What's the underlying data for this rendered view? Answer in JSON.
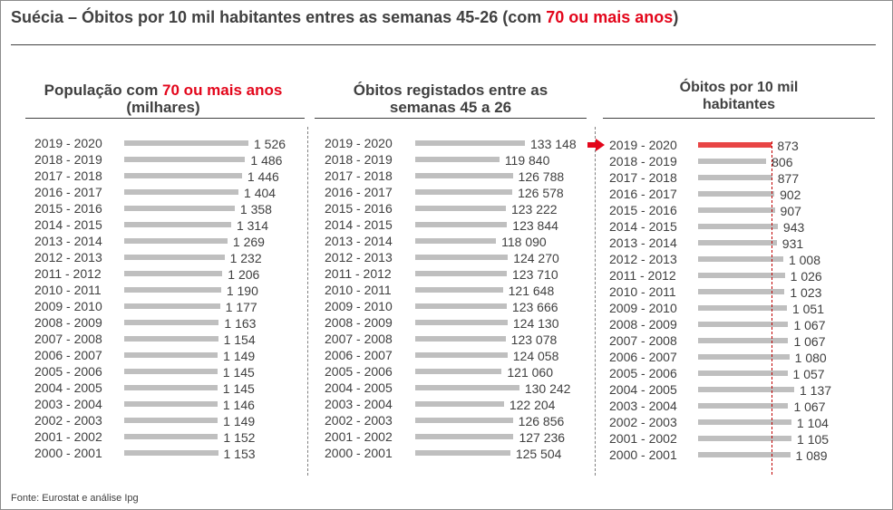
{
  "title": {
    "prefix": "Suécia – Óbitos por 10 mil habitantes entres as semanas 45-26 (com ",
    "highlight": "70 ou mais anos",
    "suffix": ")"
  },
  "source": "Fonte: Eurostat e análise Ipg",
  "colors": {
    "text": "#404040",
    "accent_red": "#e3061b",
    "bar": "#bfbfbf",
    "bar_highlight": "#e84545"
  },
  "panels": [
    {
      "title_pre": "População com ",
      "title_red": "70 ou mais anos",
      "title_post": "(milhares)"
    },
    {
      "title_line1": "Óbitos registados entre as",
      "title_line2": "semanas 45 a 26"
    },
    {
      "title_line1": "Óbitos por 10 mil",
      "title_line2": "habitantes"
    }
  ],
  "chart_data": [
    {
      "type": "bar",
      "orientation": "horizontal",
      "title": "População com 70 ou mais anos (milhares)",
      "categories": [
        "2019 - 2020",
        "2018 - 2019",
        "2017 - 2018",
        "2016 - 2017",
        "2015 - 2016",
        "2014 - 2015",
        "2013 - 2014",
        "2012 - 2013",
        "2011 - 2012",
        "2010 - 2011",
        "2009 - 2010",
        "2008 - 2009",
        "2007 - 2008",
        "2006 - 2007",
        "2005 - 2006",
        "2004 - 2005",
        "2003 - 2004",
        "2002 - 2003",
        "2001 - 2002",
        "2000 - 2001"
      ],
      "values": [
        1526,
        1486,
        1446,
        1404,
        1358,
        1314,
        1269,
        1232,
        1206,
        1190,
        1177,
        1163,
        1154,
        1149,
        1145,
        1145,
        1146,
        1149,
        1152,
        1153
      ],
      "labels": [
        "1 526",
        "1 486",
        "1 446",
        "1 404",
        "1 358",
        "1 314",
        "1 269",
        "1 232",
        "1 206",
        "1 190",
        "1 177",
        "1 163",
        "1 154",
        "1 149",
        "1 145",
        "1 145",
        "1 146",
        "1 149",
        "1 152",
        "1 153"
      ],
      "xlim": [
        0,
        1526
      ]
    },
    {
      "type": "bar",
      "orientation": "horizontal",
      "title": "Óbitos registados entre as semanas 45 a 26",
      "categories": [
        "2019 - 2020",
        "2018 - 2019",
        "2017 - 2018",
        "2016 - 2017",
        "2015 - 2016",
        "2014 - 2015",
        "2013 - 2014",
        "2012 - 2013",
        "2011 - 2012",
        "2010 - 2011",
        "2009 - 2010",
        "2008 - 2009",
        "2007 - 2008",
        "2006 - 2007",
        "2005 - 2006",
        "2004 - 2005",
        "2003 - 2004",
        "2002 - 2003",
        "2001 - 2002",
        "2000 - 2001"
      ],
      "values": [
        133148,
        119840,
        126788,
        126578,
        123222,
        123844,
        118090,
        124270,
        123710,
        121648,
        123666,
        124130,
        123078,
        124058,
        121060,
        130242,
        122204,
        126856,
        127236,
        125504
      ],
      "labels": [
        "133 148",
        "119 840",
        "126 788",
        "126 578",
        "123 222",
        "123 844",
        "118 090",
        "124 270",
        "123 710",
        "121 648",
        "123 666",
        "124 130",
        "123 078",
        "124 058",
        "121 060",
        "130 242",
        "122 204",
        "126 856",
        "127 236",
        "125 504"
      ],
      "xlim": [
        76000,
        133148
      ]
    },
    {
      "type": "bar",
      "orientation": "horizontal",
      "title": "Óbitos por 10 mil habitantes",
      "categories": [
        "2019 - 2020",
        "2018 - 2019",
        "2017 - 2018",
        "2016 - 2017",
        "2015 - 2016",
        "2014 - 2015",
        "2013 - 2014",
        "2012 - 2013",
        "2011 - 2012",
        "2010 - 2011",
        "2009 - 2010",
        "2008 - 2009",
        "2007 - 2008",
        "2006 - 2007",
        "2005 - 2006",
        "2004 - 2005",
        "2003 - 2004",
        "2002 - 2003",
        "2001 - 2002",
        "2000 - 2001"
      ],
      "values": [
        873,
        806,
        877,
        902,
        907,
        943,
        931,
        1008,
        1026,
        1023,
        1051,
        1067,
        1067,
        1080,
        1057,
        1137,
        1067,
        1104,
        1105,
        1089
      ],
      "labels": [
        "873",
        "806",
        "877",
        "902",
        "907",
        "943",
        "931",
        "1 008",
        "1 026",
        "1 023",
        "1 051",
        "1 067",
        "1 067",
        "1 080",
        "1 057",
        "1 137",
        "1 067",
        "1 104",
        "1 105",
        "1 089"
      ],
      "highlight_index": 0,
      "reference_line_value": 873,
      "xlim": [
        0,
        1137
      ]
    }
  ]
}
